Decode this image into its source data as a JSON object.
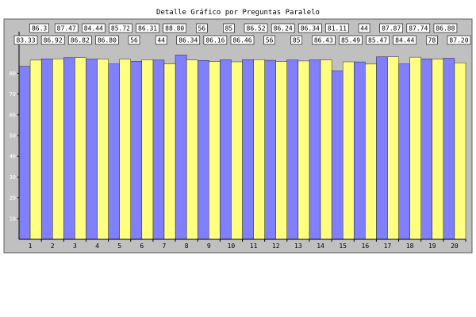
{
  "chart_data": {
    "type": "bar",
    "title": "Detalle Gráfico por Preguntas Paralelo",
    "xlabel": "",
    "ylabel": "",
    "ylim": [
      0,
      100
    ],
    "yticks": [
      10,
      20,
      30,
      40,
      50,
      60,
      70,
      80
    ],
    "grid": false,
    "legend": "none",
    "categories": [
      "1",
      "2",
      "3",
      "4",
      "5",
      "6",
      "7",
      "8",
      "9",
      "10",
      "11",
      "12",
      "13",
      "14",
      "15",
      "16",
      "17",
      "18",
      "19",
      "20"
    ],
    "series": [
      {
        "color": "#8080ff",
        "values": [
          83.33,
          86.92,
          87.47,
          86.82,
          84.44,
          85.72,
          86.31,
          88.8,
          86.16,
          86.46,
          86.52,
          86.24,
          86.34,
          86.43,
          81.11,
          85.47,
          87.87,
          84.44,
          86.88,
          87.2
        ]
      },
      {
        "color": "#ffff80",
        "values": [
          86.3,
          86.9,
          87.5,
          86.8,
          86.8,
          86.56,
          84.44,
          86.34,
          85.6,
          85.5,
          86.5,
          85.6,
          85.9,
          86.4,
          85.49,
          84.4,
          87.9,
          87.74,
          86.78,
          85.0
        ]
      }
    ],
    "data_labels": [
      "83.33",
      "86.3",
      "86.92",
      "87.47",
      "86.82",
      "84.44",
      "86.80",
      "85.72",
      "56",
      "86.31",
      "44",
      "88.80",
      "86.34",
      "56",
      "86.16",
      "85",
      "86.46",
      "86.52",
      "56",
      "86.24",
      "85",
      "86.34",
      "86.43",
      "81.11",
      "85.49",
      "44",
      "85.47",
      "87.87",
      "84.44",
      "87.74",
      "78",
      "86.88",
      "87.20"
    ],
    "colors": {
      "background": "#c0c0c0",
      "plot": "#ffffff",
      "axis": "#000000"
    }
  }
}
